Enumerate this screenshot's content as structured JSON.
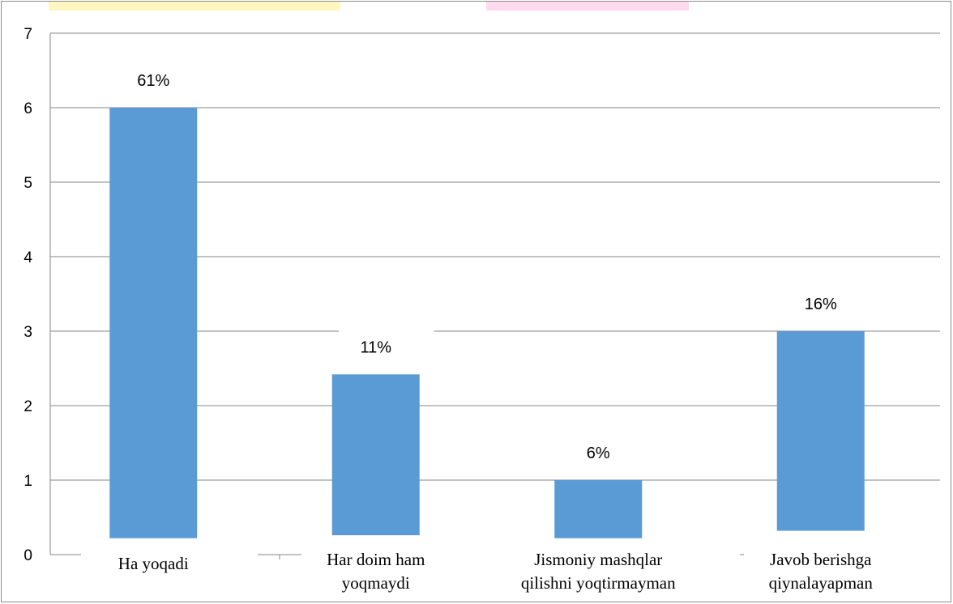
{
  "chart_data": {
    "type": "bar",
    "categories": [
      [
        "Ha yoqadi"
      ],
      [
        "Har doim ham",
        "yoqmaydi"
      ],
      [
        "Jismoniy mashqlar",
        "qilishni yoqtirmayman"
      ],
      [
        "Javob berishga",
        "qiynalayapman"
      ]
    ],
    "values": [
      6,
      2.42,
      1,
      3
    ],
    "bar_bottoms": [
      0.22,
      0.26,
      0.22,
      0.32
    ],
    "data_labels": [
      "61%",
      "11%",
      "6%",
      "16%"
    ],
    "ylim": [
      0,
      7
    ],
    "yticks": [
      0,
      1,
      2,
      3,
      4,
      5,
      6,
      7
    ],
    "grid": true,
    "legend": "none",
    "colors": {
      "bar": "#5b9bd5",
      "grid": "#868686",
      "axis": "#868686",
      "stripe_left": "#fff3b0",
      "stripe_right": "#ffd6ec"
    }
  }
}
